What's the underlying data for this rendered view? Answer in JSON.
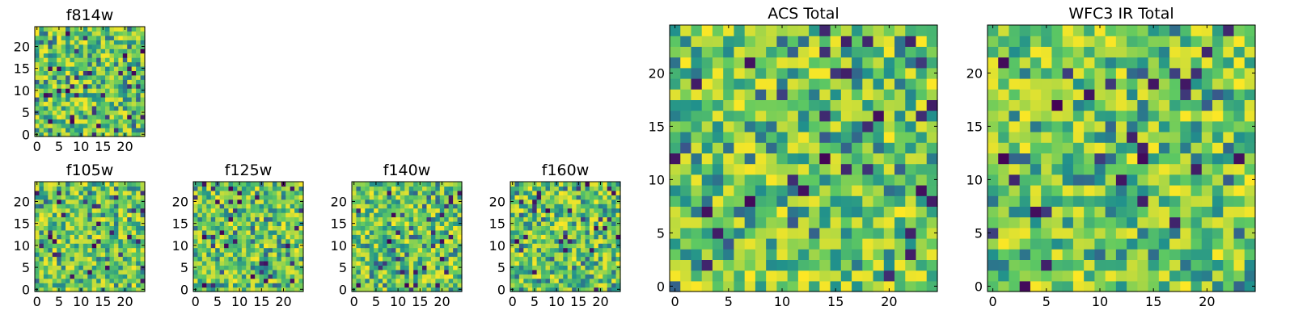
{
  "chart_data": [
    {
      "id": "f814w",
      "type": "heatmap",
      "title": "f814w",
      "grid_size": [
        25,
        25
      ],
      "colormap": "viridis",
      "xticks": [
        0,
        5,
        10,
        15,
        20
      ],
      "yticks": [
        0,
        5,
        10,
        15,
        20
      ],
      "xlim": [
        -0.5,
        24.5
      ],
      "ylim": [
        -0.5,
        24.5
      ],
      "grid": false,
      "seed": 814
    },
    {
      "id": "f105w",
      "type": "heatmap",
      "title": "f105w",
      "grid_size": [
        25,
        25
      ],
      "colormap": "viridis",
      "xticks": [
        0,
        5,
        10,
        15,
        20
      ],
      "yticks": [
        0,
        5,
        10,
        15,
        20
      ],
      "xlim": [
        -0.5,
        24.5
      ],
      "ylim": [
        -0.5,
        24.5
      ],
      "grid": false,
      "seed": 105
    },
    {
      "id": "f125w",
      "type": "heatmap",
      "title": "f125w",
      "grid_size": [
        25,
        25
      ],
      "colormap": "viridis",
      "xticks": [
        0,
        5,
        10,
        15,
        20
      ],
      "yticks": [
        0,
        5,
        10,
        15,
        20
      ],
      "xlim": [
        -0.5,
        24.5
      ],
      "ylim": [
        -0.5,
        24.5
      ],
      "grid": false,
      "seed": 125
    },
    {
      "id": "f140w",
      "type": "heatmap",
      "title": "f140w",
      "grid_size": [
        25,
        25
      ],
      "colormap": "viridis",
      "xticks": [
        0,
        5,
        10,
        15,
        20
      ],
      "yticks": [
        0,
        5,
        10,
        15,
        20
      ],
      "xlim": [
        -0.5,
        24.5
      ],
      "ylim": [
        -0.5,
        24.5
      ],
      "grid": false,
      "seed": 140
    },
    {
      "id": "f160w",
      "type": "heatmap",
      "title": "f160w",
      "grid_size": [
        25,
        25
      ],
      "colormap": "viridis",
      "xticks": [
        0,
        5,
        10,
        15,
        20
      ],
      "yticks": [
        0,
        5,
        10,
        15,
        20
      ],
      "xlim": [
        -0.5,
        24.5
      ],
      "ylim": [
        -0.5,
        24.5
      ],
      "grid": false,
      "seed": 160
    },
    {
      "id": "acs_total",
      "type": "heatmap",
      "title": "ACS Total",
      "grid_size": [
        25,
        25
      ],
      "colormap": "viridis",
      "xticks": [
        0,
        5,
        10,
        15,
        20
      ],
      "yticks": [
        0,
        5,
        10,
        15,
        20
      ],
      "xlim": [
        -0.5,
        24.5
      ],
      "ylim": [
        -0.5,
        24.5
      ],
      "grid": false,
      "seed": 2001
    },
    {
      "id": "wfc3_ir_total",
      "type": "heatmap",
      "title": "WFC3 IR Total",
      "grid_size": [
        25,
        25
      ],
      "colormap": "viridis",
      "xticks": [
        0,
        5,
        10,
        15,
        20
      ],
      "yticks": [
        0,
        5,
        10,
        15,
        20
      ],
      "xlim": [
        -0.5,
        24.5
      ],
      "ylim": [
        -0.5,
        24.5
      ],
      "grid": false,
      "seed": 3001
    }
  ]
}
